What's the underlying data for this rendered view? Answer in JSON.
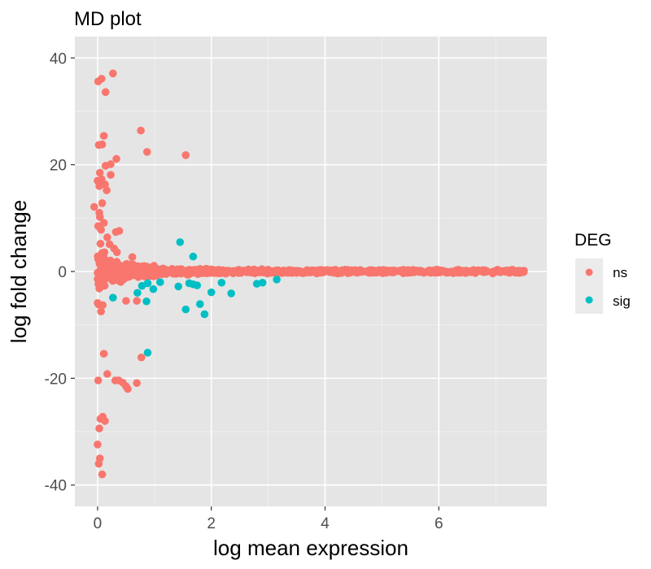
{
  "chart_data": {
    "type": "scatter",
    "title": "MD plot",
    "xlabel": "log mean expression",
    "ylabel": "log fold change",
    "xlim": [
      -0.4,
      7.9
    ],
    "ylim": [
      -44,
      44
    ],
    "x_ticks": [
      0,
      2,
      4,
      6
    ],
    "y_ticks": [
      -40,
      -20,
      0,
      20,
      40
    ],
    "x_tick_labels": [
      "0",
      "2",
      "4",
      "6"
    ],
    "y_tick_labels": [
      "-40",
      "-20",
      "0",
      "20",
      "40"
    ],
    "grid": true,
    "background": "#e5e5e5",
    "legend": {
      "title": "DEG",
      "position": "right"
    },
    "series": [
      {
        "name": "ns",
        "color": "#f8766d",
        "points": [
          [
            0.01,
            35.6
          ],
          [
            0.07,
            36.1
          ],
          [
            0.27,
            37.1
          ],
          [
            0.14,
            33.6
          ],
          [
            0.76,
            26.4
          ],
          [
            0.87,
            22.4
          ],
          [
            1.55,
            21.8
          ],
          [
            0.02,
            23.7
          ],
          [
            0.08,
            23.8
          ],
          [
            0.11,
            25.4
          ],
          [
            0.33,
            21.1
          ],
          [
            0.23,
            20.1
          ],
          [
            0.14,
            19.8
          ],
          [
            0.23,
            18.1
          ],
          [
            0.04,
            18.5
          ],
          [
            0.07,
            17.3
          ],
          [
            0.0,
            17.0
          ],
          [
            0.03,
            16.0
          ],
          [
            0.09,
            16.6
          ],
          [
            0.13,
            16.3
          ],
          [
            0.16,
            15.2
          ],
          [
            0.08,
            12.8
          ],
          [
            0.03,
            11.0
          ],
          [
            -0.06,
            12.1
          ],
          [
            0.04,
            10.2
          ],
          [
            0.11,
            9.1
          ],
          [
            0.01,
            8.5
          ],
          [
            0.06,
            7.8
          ],
          [
            0.17,
            6.4
          ],
          [
            0.32,
            7.4
          ],
          [
            0.38,
            7.6
          ],
          [
            0.05,
            5.2
          ],
          [
            0.21,
            5.1
          ],
          [
            0.12,
            3.6
          ],
          [
            0.29,
            4.3
          ],
          [
            0.34,
            3.6
          ],
          [
            0.61,
            2.7
          ],
          [
            0.01,
            2.3
          ],
          [
            0.1,
            2.4
          ],
          [
            0.2,
            1.8
          ],
          [
            0.0,
            -5.9
          ],
          [
            0.06,
            -7.5
          ],
          [
            0.09,
            -6.3
          ],
          [
            0.02,
            -6.2
          ],
          [
            0.11,
            -15.4
          ],
          [
            0.77,
            -16.1
          ],
          [
            0.01,
            -20.4
          ],
          [
            0.17,
            -19.2
          ],
          [
            0.31,
            -20.4
          ],
          [
            0.37,
            -20.4
          ],
          [
            0.44,
            -20.8
          ],
          [
            0.5,
            -21.5
          ],
          [
            0.53,
            -22.0
          ],
          [
            0.69,
            -20.9
          ],
          [
            0.05,
            -27.6
          ],
          [
            0.09,
            -27.2
          ],
          [
            0.13,
            -28.0
          ],
          [
            0.03,
            -29.4
          ],
          [
            0.0,
            -32.4
          ],
          [
            0.04,
            -35.0
          ],
          [
            0.02,
            -36.0
          ],
          [
            0.08,
            -38.0
          ],
          [
            0.69,
            -5.5
          ],
          [
            0.5,
            -5.5
          ]
        ]
      },
      {
        "name": "sig",
        "color": "#00bfc4",
        "points": [
          [
            1.45,
            5.5
          ],
          [
            1.68,
            2.8
          ],
          [
            0.27,
            -4.9
          ],
          [
            0.7,
            -4.0
          ],
          [
            0.78,
            -2.7
          ],
          [
            0.88,
            -2.2
          ],
          [
            0.86,
            -5.6
          ],
          [
            0.88,
            -15.2
          ],
          [
            0.98,
            -3.3
          ],
          [
            1.1,
            -2.0
          ],
          [
            1.42,
            -2.8
          ],
          [
            1.55,
            -7.1
          ],
          [
            1.61,
            -2.2
          ],
          [
            1.68,
            -2.4
          ],
          [
            1.75,
            -2.6
          ],
          [
            1.8,
            -6.1
          ],
          [
            1.88,
            -8.0
          ],
          [
            2.0,
            -3.9
          ],
          [
            2.18,
            -2.1
          ],
          [
            2.35,
            -4.1
          ],
          [
            2.8,
            -2.3
          ],
          [
            2.9,
            -2.1
          ],
          [
            3.15,
            -1.5
          ]
        ]
      }
    ],
    "dense_band": {
      "series": "ns",
      "description_hidden": true,
      "x_start": 0.0,
      "x_end": 7.5,
      "y_extent_near_zero": 4.0,
      "y_extent_far": 0.4
    }
  }
}
